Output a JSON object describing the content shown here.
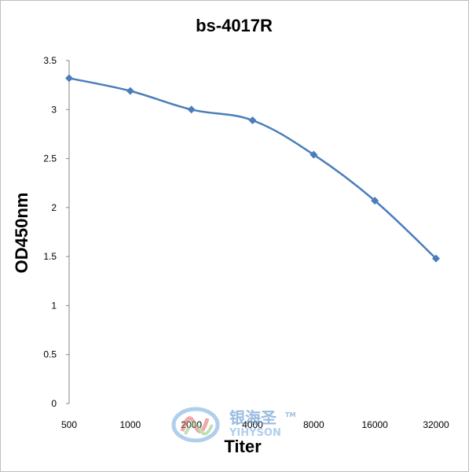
{
  "chart_data": {
    "type": "line",
    "title": "bs-4017R",
    "xlabel": "Titer",
    "ylabel": "OD450nm",
    "categories": [
      "500",
      "1000",
      "2000",
      "4000",
      "8000",
      "16000",
      "32000"
    ],
    "series": [
      {
        "values": [
          3.32,
          3.19,
          3.0,
          2.89,
          2.54,
          2.07,
          1.48
        ]
      }
    ],
    "ylim": [
      0,
      3.5
    ],
    "yticks": [
      "0",
      "0.5",
      "1",
      "1.5",
      "2",
      "2.5",
      "3",
      "3.5"
    ],
    "grid": false,
    "legend": "none",
    "line_color": "#4a7ebb"
  },
  "watermark": {
    "brand_cn": "银海圣",
    "brand_en": "YIHYSON",
    "trademark": "TM"
  }
}
